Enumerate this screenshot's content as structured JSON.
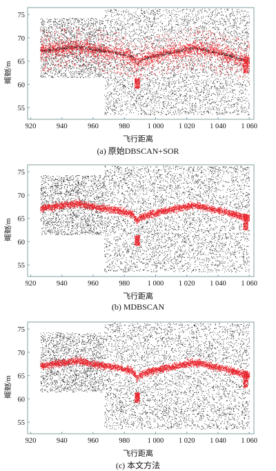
{
  "chart_data": [
    {
      "type": "scatter",
      "caption": "(a) 原始DBSCAN+SOR",
      "xlabel": "飞行距离",
      "ylabel": "高度/m",
      "xlim": [
        918,
        1063
      ],
      "ylim": [
        52.5,
        76.5
      ],
      "xticks": [
        "920",
        "940",
        "960",
        "980",
        "1 000",
        "1 020",
        "1 040",
        "1 060"
      ],
      "yticks": [
        "55",
        "60",
        "65",
        "70",
        "75"
      ],
      "series": [
        {
          "color": "#1a1a1a",
          "values": "noise points"
        },
        {
          "color": "#e8262e",
          "values": "ground points"
        }
      ],
      "style": "mixed"
    },
    {
      "type": "scatter",
      "caption": "(b) MDBSCAN",
      "xlabel": "飞行距离",
      "ylabel": "高度/m",
      "xlim": [
        918,
        1063
      ],
      "ylim": [
        52.5,
        76.5
      ],
      "xticks": [
        "920",
        "940",
        "960",
        "980",
        "1 000",
        "1 020",
        "1 040",
        "1 060"
      ],
      "yticks": [
        "55",
        "60",
        "65",
        "70",
        "75"
      ],
      "series": [
        {
          "color": "#1a1a1a",
          "values": "noise points"
        },
        {
          "color": "#e8262e",
          "values": "ground points"
        }
      ],
      "style": "clean"
    },
    {
      "type": "scatter",
      "caption": "(c) 本文方法",
      "xlabel": "飞行距离",
      "ylabel": "高度/m",
      "xlim": [
        918,
        1063
      ],
      "ylim": [
        52.5,
        76.5
      ],
      "xticks": [
        "920",
        "940",
        "960",
        "980",
        "1 000",
        "1 020",
        "1 040",
        "1 060"
      ],
      "yticks": [
        "55",
        "60",
        "65",
        "70",
        "75"
      ],
      "series": [
        {
          "color": "#1a1a1a",
          "values": "noise points"
        },
        {
          "color": "#e8262e",
          "values": "ground points"
        }
      ],
      "style": "clean"
    }
  ],
  "colors": {
    "axis": "#7f9f9f",
    "noise": "#1a1a1a",
    "ground": "#e8262e"
  }
}
